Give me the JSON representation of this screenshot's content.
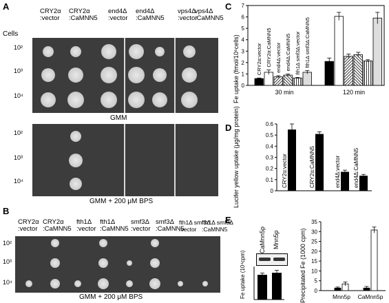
{
  "panels": {
    "a": "A",
    "b": "B",
    "c": "C",
    "d": "D",
    "e": "E"
  },
  "panelA": {
    "cells_label": "Cells",
    "strains": [
      {
        "l1": "CRY2α",
        "l2": ":vector"
      },
      {
        "l1": "CRY2α",
        "l2": ":CaMNN5"
      },
      {
        "l1": "end4Δ",
        "l2": ":vector"
      },
      {
        "l1": "end4Δ",
        "l2": ":CaMNN5"
      },
      {
        "l1": "vps4Δ",
        "l2": ":vector"
      },
      {
        "l1": "vps4Δ",
        "l2": ":CaMNN5"
      }
    ],
    "rows": [
      "10²",
      "10³",
      "10⁴"
    ],
    "caption_top": "GMM",
    "caption_bottom": "GMM + 200 μM BPS"
  },
  "panelB": {
    "strains": [
      {
        "l1": "CRY2α",
        "l2": ":vector"
      },
      {
        "l1": "CRY2α",
        "l2": ":CaMNN5"
      },
      {
        "l1": "fth1Δ",
        "l2": ":vector"
      },
      {
        "l1": "fth1Δ",
        "l2": ":CaMNN5"
      },
      {
        "l1": "smf3Δ",
        "l2": ":vector"
      },
      {
        "l1": "smf3Δ",
        "l2": ":CaMNN5"
      },
      {
        "l1": "fth1Δ smf3Δ",
        "l2": ":vector"
      },
      {
        "l1": "fth1Δ smf3Δ",
        "l2": ":CaMNN5"
      }
    ],
    "rows": [
      "10²",
      "10³",
      "10⁴"
    ],
    "caption": "GMM + 200 μM BPS"
  },
  "chart_data": [
    {
      "type": "bar",
      "panel": "C",
      "ylabel": "Fe uptake (fmol/10⁶cells)",
      "ylim": [
        0,
        7
      ],
      "yticks": [
        0,
        1,
        2,
        3,
        4,
        5,
        6,
        7
      ],
      "groups": [
        "30 min",
        "120 min"
      ],
      "legend_labels": [
        "CRY2α:vector",
        "CRY2α:CaMNN5",
        "end4Δ:vector",
        "end4Δ:CaMNN5",
        "fth1Δ smf3Δ:vector",
        "fth1Δ smf3Δ:CaMNN5"
      ],
      "series": [
        {
          "values": [
            0.6,
            2.1
          ],
          "err": [
            0.05,
            0.3
          ]
        },
        {
          "values": [
            1.15,
            6.05
          ],
          "err": [
            0.2,
            0.35
          ]
        },
        {
          "values": [
            0.75,
            2.55
          ],
          "err": [
            0.1,
            0.2
          ]
        },
        {
          "values": [
            0.9,
            2.7
          ],
          "err": [
            0.1,
            0.2
          ]
        },
        {
          "values": [
            0.65,
            2.15
          ],
          "err": [
            0.05,
            0.1
          ]
        },
        {
          "values": [
            1.15,
            5.9
          ],
          "err": [
            0.15,
            0.5
          ]
        }
      ]
    },
    {
      "type": "bar",
      "panel": "D",
      "ylabel": "Lucifer yellow uptake (μg/mg protein)",
      "ylim": [
        0,
        0.6
      ],
      "yticks": [
        0,
        0.1,
        0.2,
        0.3,
        0.4,
        0.5,
        0.6
      ],
      "categories": [
        "CRY2α:vector",
        "CRY2α:CaMNN5",
        "end4Δ:vector",
        "end4Δ:CaMNN5"
      ],
      "values": [
        0.55,
        0.51,
        0.17,
        0.135
      ],
      "err": [
        0.05,
        0.02,
        0.015,
        0.012
      ]
    },
    {
      "type": "bar",
      "panel": "E-left",
      "ylabel": "Fe uptake (10⁴cpm)",
      "blot_labels": [
        "CaMnn5p",
        "Mnn5p"
      ],
      "ylim": [
        0,
        2
      ],
      "values": [
        1.5,
        1.62
      ],
      "err": [
        0.1,
        0.15
      ]
    },
    {
      "type": "bar",
      "panel": "E-right",
      "ylabel": "Precipitated Fe (1000 cpm)",
      "ylim": [
        0,
        35
      ],
      "yticks": [
        0,
        5,
        10,
        15,
        20,
        25,
        30,
        35
      ],
      "categories": [
        "Mnn5p",
        "CaMnn5p"
      ],
      "series": [
        {
          "values": [
            1.3,
            1.3
          ],
          "err": [
            0.5,
            0.8
          ]
        },
        {
          "values": [
            3.4,
            30.8
          ],
          "err": [
            1.0,
            1.5
          ]
        }
      ]
    }
  ]
}
